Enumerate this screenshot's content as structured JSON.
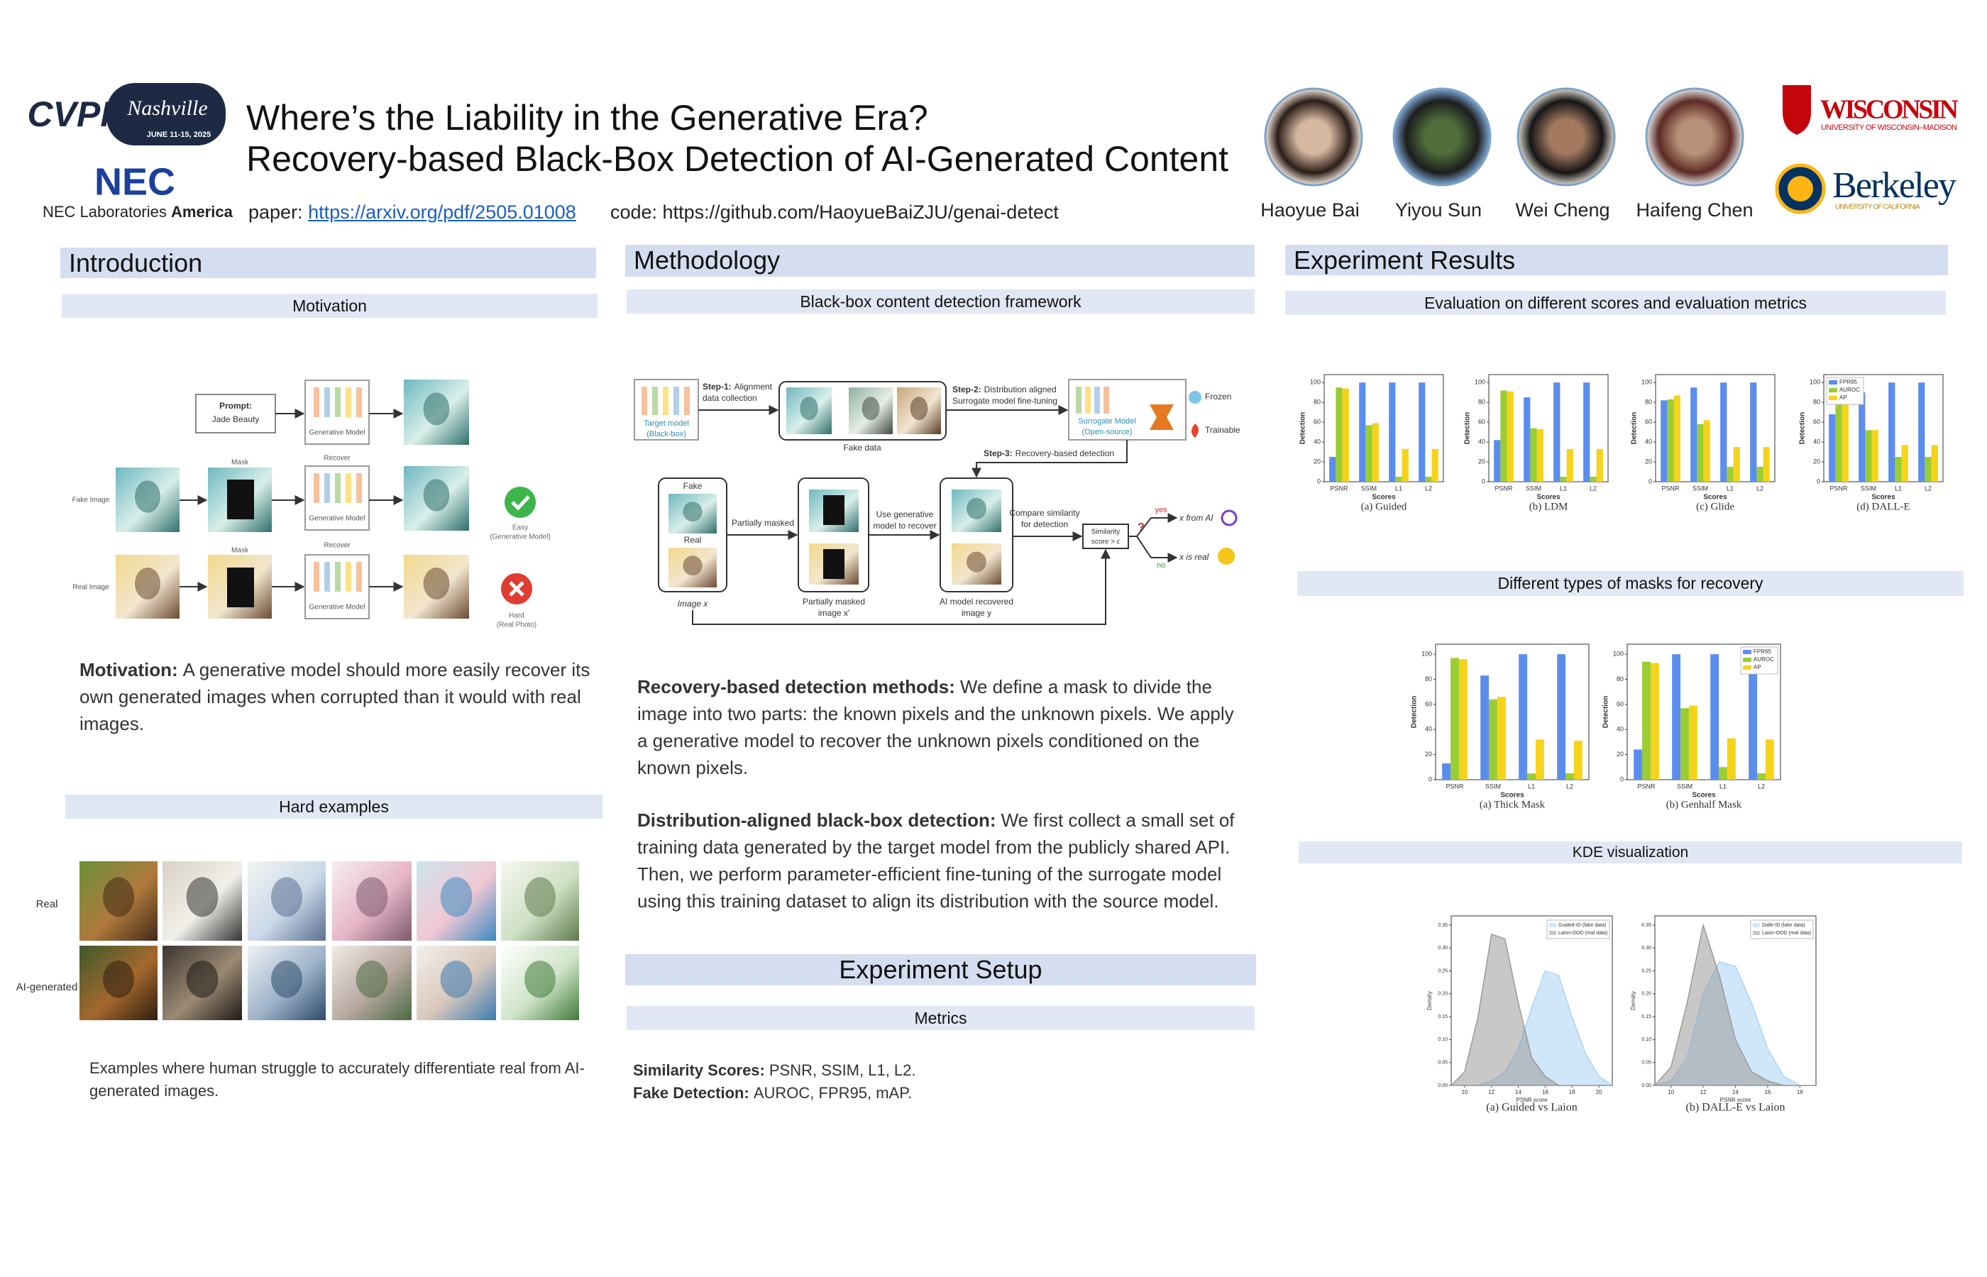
{
  "header": {
    "title": [
      "Where’s the Liability in the Generative Era?",
      "Recovery-based Black-Box Detection of AI-Generated Content"
    ],
    "cvpr_logo": {
      "name": "CVPR",
      "city": "Nashville",
      "dates": "JUNE 11-15, 2025"
    },
    "nec_logo": "NEC",
    "nec_lab": "NEC Laboratories",
    "nec_lab_bold": "America",
    "paper_label": "paper:",
    "paper_url": "https://arxiv.org/pdf/2505.01008",
    "code": "code: https://github.com/HaoyueBaiZJU/genai-detect",
    "authors": [
      "Haoyue Bai",
      "Yiyou Sun",
      "Wei Cheng",
      "Haifeng Chen"
    ],
    "wisconsin": "WISCONSIN",
    "wisconsin_sub": "UNIVERSITY OF WISCONSIN–MADISON",
    "berkeley": "Berkeley",
    "berkeley_sub": "UNIVERSITY OF CALIFORNIA"
  },
  "introduction": {
    "heading": "Introduction",
    "motivation_heading": "Motivation",
    "figure": {
      "prompt_label": "Prompt:",
      "prompt": "Jade Beauty",
      "generative_model": [
        "Generative Model",
        "Generative Model",
        "Generative Model"
      ],
      "mask": [
        "Mask",
        "Mask"
      ],
      "recover": [
        "Recover",
        "Recover"
      ],
      "fake_image": "Fake Image",
      "real_image": "Real Image",
      "easy": "Easy",
      "easy_note": "(Generative Model)",
      "hard": "Hard",
      "hard_note": "(Real Photo)"
    },
    "motivation_bold": "Motivation:",
    "motivation_text": "A generative model should more easily recover its own generated images when corrupted than it would with real images.",
    "hard_examples_heading": "Hard examples",
    "row_labels": [
      "Real",
      "AI-generated"
    ],
    "caption": "Examples where human struggle to accurately differentiate real from AI-generated images."
  },
  "methodology": {
    "heading": "Methodology",
    "framework_heading": "Black-box content detection framework",
    "figure": {
      "target_model": [
        "Target model",
        "(Black-box)"
      ],
      "step1_label": "Step-1:",
      "step1": [
        "Alignment",
        "data collection"
      ],
      "fake_data": "Fake data",
      "step2_label": "Step-2:",
      "step2": [
        "Distribution aligned",
        "Surrogate model fine-tuning"
      ],
      "surrogate": [
        "Surrogate Model",
        "(Open-source)"
      ],
      "frozen": "Frozen",
      "trainable": "Trainable",
      "step3_label": "Step-3:",
      "step3": "Recovery-based detection",
      "fake": "Fake",
      "real": "Real",
      "image_x": "Image x",
      "partially_masked": "Partially masked",
      "masked_image": [
        "Partially masked",
        "image x′"
      ],
      "use_model": [
        "Use generative",
        "model to recover"
      ],
      "recovered_image": [
        "AI model recovered",
        "image y"
      ],
      "compare": [
        "Compare similarity",
        "for detection"
      ],
      "similarity": [
        "Similarity",
        "score > ϵ"
      ],
      "question": "?",
      "yes": "yes",
      "no": "no",
      "from_ai": "x from AI",
      "is_real": "x is real"
    },
    "paragraphs": [
      {
        "bold": "Recovery-based detection methods:",
        "text": "We define a mask to divide the image into two parts: the known pixels and the unknown pixels. We apply a generative model to recover the unknown pixels conditioned on the known pixels."
      },
      {
        "bold": "Distribution-aligned black-box detection:",
        "text": "We first collect a small set of training data generated by the target model from the publicly shared API. Then, we perform parameter-efficient fine-tuning of the surrogate model using this training dataset to align its distribution with the source model."
      }
    ]
  },
  "experiment_setup": {
    "heading": "Experiment Setup",
    "metrics_heading": "Metrics",
    "items": [
      {
        "label": "Similarity Scores:",
        "text": "PSNR, SSIM, L1, L2."
      },
      {
        "label": "Fake Detection:",
        "text": "AUROC, FPR95, mAP."
      }
    ]
  },
  "results": {
    "heading": "Experiment Results",
    "eval_heading": "Evaluation on different scores and evaluation metrics",
    "charts": [
      {
        "type": "bar",
        "caption": "(a) Guided",
        "xlabel": "Scores",
        "ylabel": "Detection",
        "categories": [
          "PSNR",
          "SSIM",
          "L1",
          "L2"
        ],
        "ylim": [
          0,
          108
        ],
        "yticks": [
          0,
          20,
          40,
          60,
          80,
          100
        ],
        "series": [
          {
            "color": "#5b8def",
            "values": [
              25,
              100,
              100,
              100
            ]
          },
          {
            "color": "#9acd32",
            "values": [
              95,
              57,
              5,
              5
            ]
          },
          {
            "color": "#f5d31b",
            "values": [
              94,
              59,
              33,
              33
            ]
          }
        ]
      },
      {
        "type": "bar",
        "caption": "(b) LDM",
        "xlabel": "Scores",
        "ylabel": "Detection",
        "categories": [
          "PSNR",
          "SSIM",
          "L1",
          "L2"
        ],
        "ylim": [
          0,
          108
        ],
        "yticks": [
          0,
          20,
          40,
          60,
          80,
          100
        ],
        "series": [
          {
            "color": "#5b8def",
            "values": [
              42,
              85,
              100,
              100
            ]
          },
          {
            "color": "#9acd32",
            "values": [
              92,
              54,
              5,
              5
            ]
          },
          {
            "color": "#f5d31b",
            "values": [
              91,
              53,
              33,
              33
            ]
          }
        ]
      },
      {
        "type": "bar",
        "caption": "(c) Glide",
        "xlabel": "Scores",
        "ylabel": "Detection",
        "categories": [
          "PSNR",
          "SSIM",
          "L1",
          "L2"
        ],
        "ylim": [
          0,
          108
        ],
        "yticks": [
          0,
          20,
          40,
          60,
          80,
          100
        ],
        "series": [
          {
            "color": "#5b8def",
            "values": [
              82,
              95,
              100,
              100
            ]
          },
          {
            "color": "#9acd32",
            "values": [
              83,
              58,
              15,
              15
            ]
          },
          {
            "color": "#f5d31b",
            "values": [
              87,
              62,
              35,
              35
            ]
          }
        ]
      },
      {
        "type": "bar",
        "caption": "(d) DALL-E",
        "xlabel": "Scores",
        "ylabel": "Detection",
        "categories": [
          "PSNR",
          "SSIM",
          "L1",
          "L2"
        ],
        "ylim": [
          0,
          108
        ],
        "yticks": [
          0,
          20,
          40,
          60,
          80,
          100
        ],
        "legend": "upper left",
        "series": [
          {
            "name": "FPR95",
            "color": "#5b8def",
            "values": [
              68,
              90,
              100,
              100
            ]
          },
          {
            "name": "AUROC",
            "color": "#9acd32",
            "values": [
              80,
              52,
              25,
              25
            ]
          },
          {
            "name": "AP",
            "color": "#f5d31b",
            "values": [
              79,
              52,
              37,
              37
            ]
          }
        ]
      }
    ],
    "masks_heading": "Different types of masks for recovery",
    "mask_charts": [
      {
        "type": "bar",
        "caption": "(a) Thick Mask",
        "xlabel": "Scores",
        "ylabel": "Detection",
        "categories": [
          "PSNR",
          "SSIM",
          "L1",
          "L2"
        ],
        "ylim": [
          0,
          108
        ],
        "yticks": [
          0,
          20,
          40,
          60,
          80,
          100
        ],
        "series": [
          {
            "color": "#5b8def",
            "values": [
              13,
              83,
              100,
              100
            ]
          },
          {
            "color": "#9acd32",
            "values": [
              97,
              64,
              5,
              5
            ]
          },
          {
            "color": "#f5d31b",
            "values": [
              96,
              66,
              32,
              31
            ]
          }
        ]
      },
      {
        "type": "bar",
        "caption": "(b) Genhalf Mask",
        "xlabel": "Scores",
        "ylabel": "Detection",
        "categories": [
          "PSNR",
          "SSIM",
          "L1",
          "L2"
        ],
        "ylim": [
          0,
          108
        ],
        "yticks": [
          0,
          20,
          40,
          60,
          80,
          100
        ],
        "legend": "upper right",
        "series": [
          {
            "name": "FPR95",
            "color": "#5b8def",
            "values": [
              24,
              100,
              100,
              88
            ]
          },
          {
            "name": "AUROC",
            "color": "#9acd32",
            "values": [
              94,
              57,
              10,
              5
            ]
          },
          {
            "name": "AP",
            "color": "#f5d31b",
            "values": [
              93,
              59,
              33,
              32
            ]
          }
        ]
      }
    ],
    "kde_heading": "KDE visualization",
    "kde_charts": [
      {
        "type": "density",
        "caption": "(a) Guided vs Laion",
        "xlabel": "PSNR score",
        "ylabel": "Density",
        "x": [
          9,
          10,
          11,
          12,
          13,
          14,
          15,
          16,
          17,
          18,
          19,
          20,
          21
        ],
        "xlim": [
          9,
          21
        ],
        "xticks": [
          10,
          12,
          14,
          16,
          18,
          20
        ],
        "ylim": [
          0,
          0.37
        ],
        "yticks": [
          {
            "value": 0,
            "label": "0.00"
          },
          {
            "value": 0.05,
            "label": "0.05"
          },
          {
            "value": 0.1,
            "label": "0.10"
          },
          {
            "value": 0.15,
            "label": "0.15"
          },
          {
            "value": 0.2,
            "label": "0.20"
          },
          {
            "value": 0.25,
            "label": "0.25"
          },
          {
            "value": 0.3,
            "label": "0.30"
          },
          {
            "value": 0.35,
            "label": "0.35"
          }
        ],
        "series": [
          {
            "name": "Guided-ID (fake data)",
            "color": "#a9d3f5",
            "values": [
              0,
              0,
              0,
              0.01,
              0.03,
              0.08,
              0.17,
              0.25,
              0.24,
              0.15,
              0.07,
              0.02,
              0
            ]
          },
          {
            "name": "Laion-OOD (real data)",
            "color": "#9a9a9a",
            "values": [
              0,
              0.03,
              0.15,
              0.33,
              0.32,
              0.18,
              0.06,
              0.02,
              0,
              0,
              0,
              0,
              0
            ]
          }
        ]
      },
      {
        "type": "density",
        "caption": "(b) DALL-E vs Laion",
        "xlabel": "PSNR score",
        "ylabel": "Density",
        "x": [
          9,
          10,
          11,
          12,
          13,
          14,
          15,
          16,
          17,
          18,
          19
        ],
        "xlim": [
          9,
          19
        ],
        "xticks": [
          10,
          12,
          14,
          16,
          18
        ],
        "ylim": [
          0,
          0.37
        ],
        "yticks": [
          {
            "value": 0,
            "label": "0.00"
          },
          {
            "value": 0.05,
            "label": "0.05"
          },
          {
            "value": 0.1,
            "label": "0.10"
          },
          {
            "value": 0.15,
            "label": "0.15"
          },
          {
            "value": 0.2,
            "label": "0.20"
          },
          {
            "value": 0.25,
            "label": "0.25"
          },
          {
            "value": 0.3,
            "label": "0.30"
          },
          {
            "value": 0.35,
            "label": "0.35"
          }
        ],
        "series": [
          {
            "name": "Dalle-ID (fake data)",
            "color": "#a9d3f5",
            "values": [
              0,
              0.01,
              0.06,
              0.2,
              0.27,
              0.26,
              0.18,
              0.08,
              0.02,
              0,
              0
            ]
          },
          {
            "name": "Laion-OOD (real data)",
            "color": "#9a9a9a",
            "values": [
              0,
              0.04,
              0.18,
              0.35,
              0.24,
              0.1,
              0.03,
              0.01,
              0,
              0,
              0
            ]
          }
        ]
      }
    ]
  }
}
